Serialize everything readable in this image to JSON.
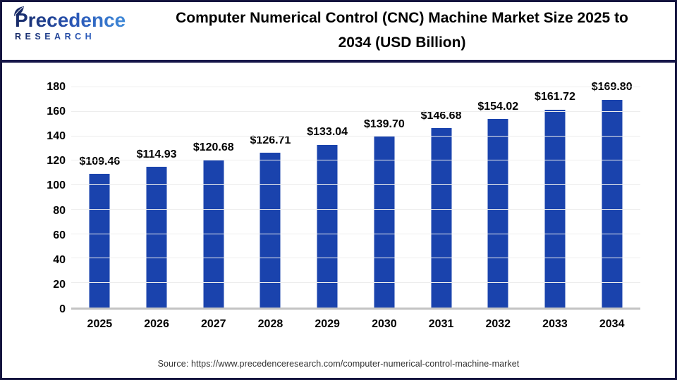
{
  "header": {
    "logo_brand": "Precedence",
    "logo_sub": "RESEARCH",
    "title": "Computer Numerical Control (CNC) Machine Market Size 2025 to 2034 (USD Billion)"
  },
  "chart_data": {
    "type": "bar",
    "title": "Computer Numerical Control (CNC) Machine Market Size 2025 to 2034 (USD Billion)",
    "categories": [
      "2025",
      "2026",
      "2027",
      "2028",
      "2029",
      "2030",
      "2031",
      "2032",
      "2033",
      "2034"
    ],
    "values": [
      109.46,
      114.93,
      120.68,
      126.71,
      133.04,
      139.7,
      146.68,
      154.02,
      161.72,
      169.8
    ],
    "value_labels": [
      "$109.46",
      "$114.93",
      "$120.68",
      "$126.71",
      "$133.04",
      "$139.70",
      "$146.68",
      "$154.02",
      "$161.72",
      "$169.80"
    ],
    "xlabel": "",
    "ylabel": "",
    "ylim": [
      0,
      180
    ],
    "yticks": [
      0,
      20,
      40,
      60,
      80,
      100,
      120,
      140,
      160,
      180
    ],
    "grid": true,
    "legend": false,
    "bar_color": "#1a43ad"
  },
  "footer": {
    "source": "Source: https://www.precedenceresearch.com/computer-numerical-control-machine-market"
  },
  "colors": {
    "bar": "#1a43ad",
    "border": "#14143f",
    "gridline": "#ededed",
    "axis_line": "#c3c3c3",
    "title_text": "#000000",
    "source_text": "#333333"
  }
}
